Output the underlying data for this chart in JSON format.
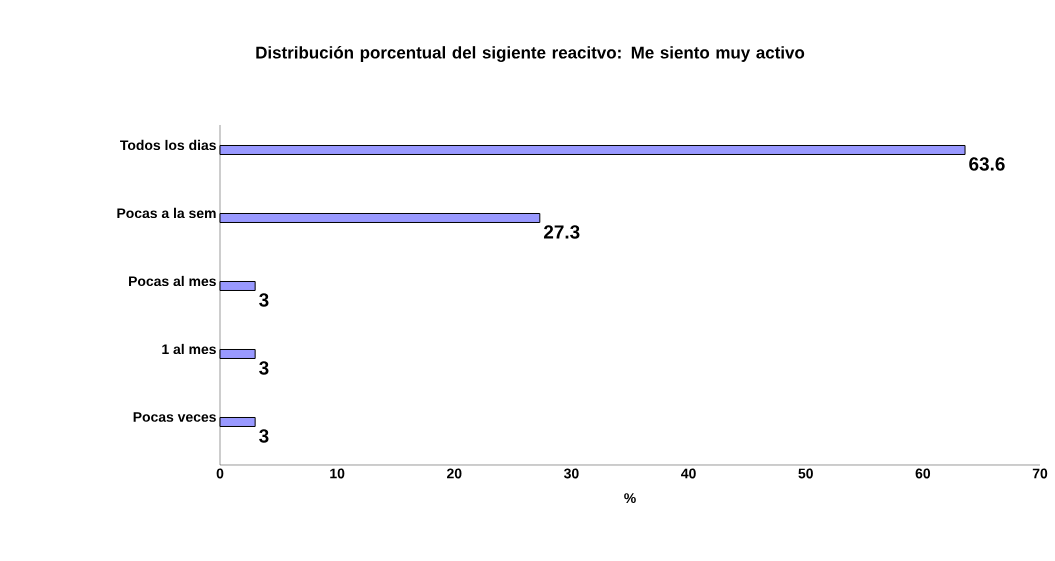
{
  "chart_data": {
    "type": "bar",
    "orientation": "horizontal",
    "title": "Distribución porcentual del sigiente reacitvo: Me siento muy activo",
    "categories": [
      "Todos los dias",
      "Pocas a la sem",
      "Pocas al mes",
      "1 al mes",
      "Pocas veces"
    ],
    "values": [
      63.6,
      27.3,
      3,
      3,
      3
    ],
    "color": "#9999ff",
    "xlim": [
      0,
      70
    ],
    "xticks": [
      0,
      10,
      20,
      30,
      40,
      50,
      60,
      70
    ],
    "xlabel": "%",
    "data_labels": true,
    "grid": false
  }
}
